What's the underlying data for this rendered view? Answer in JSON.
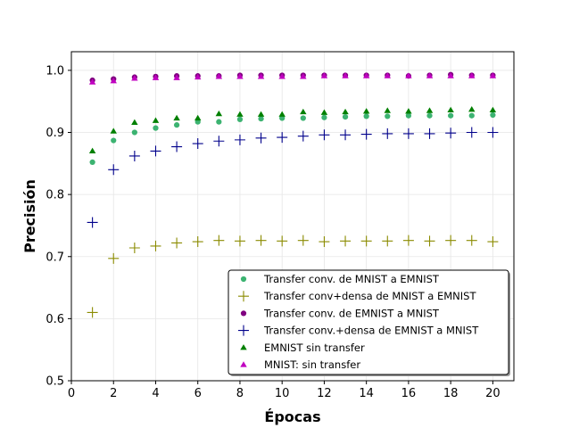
{
  "chart_data": {
    "type": "scatter",
    "xlabel": "Épocas",
    "ylabel": "Precisión",
    "xlim": [
      0,
      21
    ],
    "ylim": [
      0.5,
      1.03
    ],
    "xticks": [
      0,
      2,
      4,
      6,
      8,
      10,
      12,
      14,
      16,
      18,
      20
    ],
    "yticks": [
      0.5,
      0.6,
      0.7,
      0.8,
      0.9,
      1.0
    ],
    "grid": true,
    "legend_position": "lower-right",
    "x": [
      1,
      2,
      3,
      4,
      5,
      6,
      7,
      8,
      9,
      10,
      11,
      12,
      13,
      14,
      15,
      16,
      17,
      18,
      19,
      20
    ],
    "series": [
      {
        "name": "Transfer conv. de MNIST a EMNIST",
        "marker": "circle",
        "color": "#3cb371",
        "values": [
          0.852,
          0.887,
          0.9,
          0.907,
          0.912,
          0.917,
          0.917,
          0.921,
          0.922,
          0.923,
          0.923,
          0.924,
          0.925,
          0.926,
          0.926,
          0.927,
          0.927,
          0.927,
          0.927,
          0.928
        ]
      },
      {
        "name": "Transfer conv+densa de MNIST a EMNIST",
        "marker": "plus",
        "color": "#8b8b00",
        "values": [
          0.61,
          0.697,
          0.714,
          0.717,
          0.722,
          0.724,
          0.726,
          0.725,
          0.726,
          0.725,
          0.726,
          0.724,
          0.725,
          0.725,
          0.725,
          0.726,
          0.725,
          0.726,
          0.726,
          0.724
        ]
      },
      {
        "name": "Transfer  conv. de EMNIST a MNIST",
        "marker": "circle",
        "color": "#800080",
        "values": [
          0.984,
          0.986,
          0.989,
          0.99,
          0.991,
          0.991,
          0.991,
          0.992,
          0.992,
          0.992,
          0.992,
          0.992,
          0.992,
          0.992,
          0.992,
          0.991,
          0.992,
          0.993,
          0.992,
          0.992
        ]
      },
      {
        "name": "Transfer  conv.+densa de EMNIST a MNIST",
        "marker": "plus",
        "color": "#00008b",
        "values": [
          0.755,
          0.84,
          0.862,
          0.87,
          0.877,
          0.882,
          0.886,
          0.888,
          0.891,
          0.892,
          0.894,
          0.896,
          0.896,
          0.897,
          0.898,
          0.898,
          0.898,
          0.899,
          0.9,
          0.9
        ]
      },
      {
        "name": "EMNIST sin transfer",
        "marker": "triangle",
        "color": "#008000",
        "values": [
          0.87,
          0.902,
          0.916,
          0.919,
          0.923,
          0.923,
          0.93,
          0.929,
          0.929,
          0.929,
          0.933,
          0.932,
          0.933,
          0.934,
          0.935,
          0.934,
          0.935,
          0.936,
          0.937,
          0.936
        ]
      },
      {
        "name": "MNIST: sin transfer",
        "marker": "triangle",
        "color": "#c000c0",
        "values": [
          0.981,
          0.983,
          0.987,
          0.988,
          0.988,
          0.989,
          0.99,
          0.99,
          0.99,
          0.99,
          0.99,
          0.991,
          0.991,
          0.991,
          0.991,
          0.991,
          0.991,
          0.991,
          0.991,
          0.991
        ]
      }
    ]
  }
}
